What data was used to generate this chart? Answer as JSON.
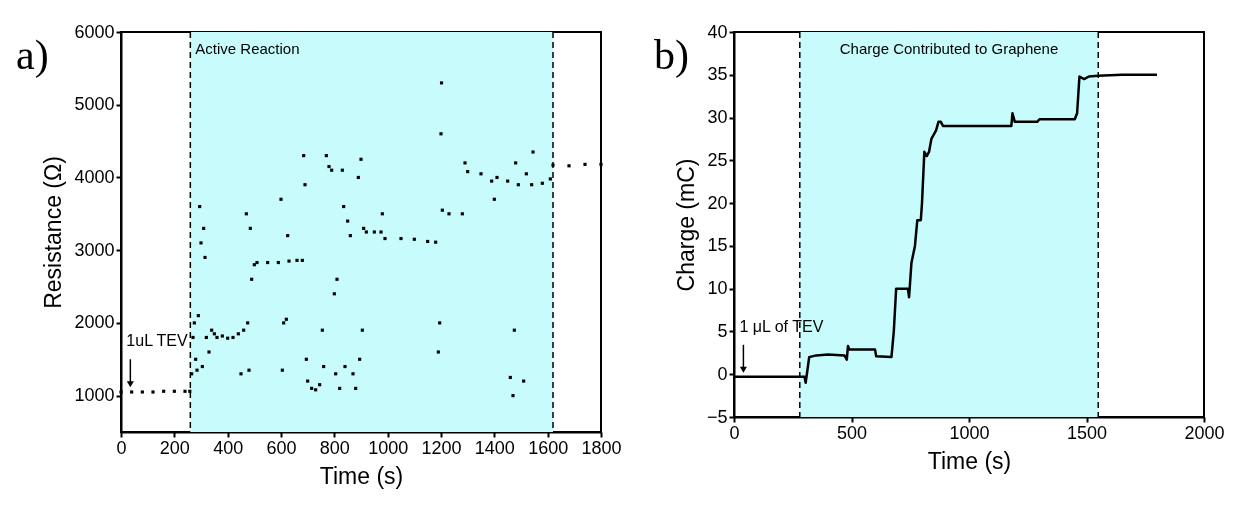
{
  "chart_data": [
    {
      "type": "scatter",
      "title": "a)",
      "xlabel": "Time (s)",
      "ylabel": "Resistance (Ω)",
      "color": "#000000",
      "marker": "square",
      "x": [
        0,
        40,
        80,
        120,
        160,
        200,
        240,
        258,
        265,
        270,
        275,
        280,
        285,
        290,
        295,
        300,
        305,
        310,
        315,
        320,
        330,
        340,
        350,
        360,
        380,
        400,
        420,
        440,
        450,
        460,
        470,
        475,
        480,
        485,
        490,
        500,
        510,
        550,
        590,
        600,
        605,
        610,
        620,
        625,
        630,
        660,
        680,
        685,
        690,
        695,
        700,
        715,
        730,
        745,
        755,
        760,
        770,
        780,
        790,
        800,
        805,
        810,
        820,
        830,
        835,
        840,
        850,
        860,
        870,
        880,
        890,
        895,
        900,
        905,
        910,
        920,
        950,
        975,
        980,
        990,
        1050,
        1100,
        1150,
        1180,
        1190,
        1195,
        1200,
        1202,
        1205,
        1230,
        1280,
        1290,
        1300,
        1350,
        1390,
        1400,
        1410,
        1450,
        1460,
        1470,
        1475,
        1480,
        1490,
        1510,
        1520,
        1540,
        1545,
        1580,
        1610,
        1620,
        1680,
        1740,
        1800
      ],
      "values": [
        1050,
        1050,
        1050,
        1050,
        1060,
        1060,
        1060,
        1060,
        1300,
        1800,
        2000,
        1500,
        1350,
        2100,
        3600,
        3100,
        1400,
        3300,
        2900,
        1800,
        1600,
        1900,
        1850,
        1800,
        1820,
        1790,
        1800,
        1850,
        1300,
        1900,
        3500,
        2000,
        1350,
        3300,
        2600,
        2800,
        2830,
        2830,
        2830,
        3700,
        1350,
        2000,
        2050,
        3200,
        2850,
        2860,
        2860,
        4300,
        3900,
        1500,
        1200,
        1100,
        1080,
        1150,
        1900,
        1400,
        4300,
        4150,
        4100,
        2400,
        1300,
        2600,
        1100,
        4100,
        3600,
        1400,
        3400,
        3200,
        1300,
        1100,
        4000,
        1500,
        4250,
        1900,
        3300,
        3250,
        3250,
        3250,
        3500,
        3160,
        3160,
        3150,
        3120,
        3110,
        1600,
        2000,
        4600,
        5300,
        3550,
        3500,
        3500,
        4200,
        4080,
        4050,
        3950,
        3700,
        4000,
        3950,
        1250,
        1000,
        1900,
        4200,
        3900,
        1200,
        4050,
        3900,
        4350,
        3920,
        3980,
        4170,
        4160,
        4180,
        4180
      ],
      "xlim": [
        0,
        1800
      ],
      "xticks": [
        0,
        200,
        400,
        600,
        800,
        1000,
        1200,
        1400,
        1600,
        1800
      ],
      "ylim": [
        500,
        6000
      ],
      "yticks": [
        1000,
        2000,
        3000,
        4000,
        5000,
        6000
      ],
      "bands": [
        {
          "axis": "x",
          "from": 260,
          "to": 1620,
          "label": "Active Reaction",
          "color": "#c8fcfc"
        }
      ],
      "ref_lines": [
        {
          "axis": "x",
          "value": 260,
          "color": "#000000",
          "line_style": "dashed"
        },
        {
          "axis": "x",
          "value": 1620,
          "color": "#000000",
          "line_style": "dashed"
        }
      ],
      "annotations": [
        {
          "text": "1uL TEV",
          "x": 35,
          "y": 1060
        }
      ]
    },
    {
      "type": "line",
      "title": "b)",
      "xlabel": "Time (s)",
      "ylabel": "Charge (mC)",
      "color": "#000000",
      "line_style": "solid",
      "x": [
        0,
        280,
        300,
        305,
        310,
        320,
        350,
        400,
        470,
        480,
        485,
        490,
        600,
        605,
        670,
        680,
        690,
        740,
        745,
        755,
        770,
        780,
        795,
        800,
        810,
        820,
        830,
        840,
        850,
        860,
        870,
        880,
        890,
        1000,
        1180,
        1185,
        1195,
        1290,
        1300,
        1450,
        1460,
        1470,
        1490,
        1510,
        1550,
        1650,
        1800
      ],
      "values": [
        -0.3,
        -0.3,
        -0.3,
        -1,
        0,
        2,
        2.2,
        2.3,
        2.2,
        1.7,
        3.3,
        2.9,
        2.9,
        2.1,
        2,
        5,
        10,
        10,
        9,
        13,
        15,
        18,
        18,
        20,
        26,
        25.5,
        26,
        27.5,
        28,
        28.5,
        29.5,
        29.5,
        29,
        29,
        29,
        30.5,
        29.5,
        29.5,
        29.8,
        29.8,
        30.5,
        34.8,
        34.5,
        34.8,
        34.9,
        35,
        35
      ],
      "xlim": [
        0,
        2000
      ],
      "xticks": [
        0,
        500,
        1000,
        1500,
        2000
      ],
      "ylim": [
        -5,
        40
      ],
      "yticks": [
        -5,
        0,
        5,
        10,
        15,
        20,
        25,
        30,
        35,
        40
      ],
      "bands": [
        {
          "axis": "x",
          "from": 280,
          "to": 1550,
          "label": "Charge Contributed to Graphene",
          "color": "#c8fcfc"
        }
      ],
      "ref_lines": [
        {
          "axis": "x",
          "value": 280,
          "color": "#000000",
          "line_style": "dashed"
        },
        {
          "axis": "x",
          "value": 1550,
          "color": "#000000",
          "line_style": "dashed"
        }
      ],
      "annotations": [
        {
          "text": "1 μL of TEV",
          "x": 40,
          "y": -0.3
        }
      ]
    }
  ]
}
